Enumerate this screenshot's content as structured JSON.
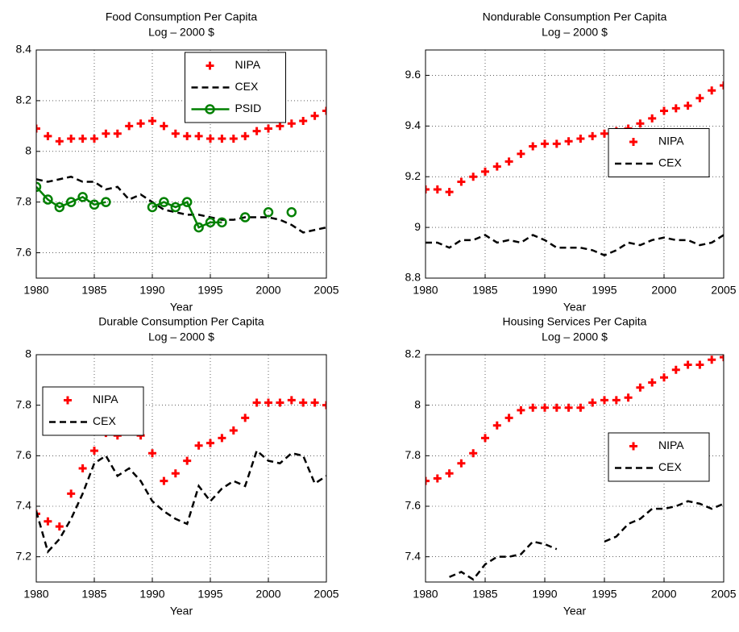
{
  "chart_data": [
    {
      "type": "line",
      "title": "Food Consumption Per Capita",
      "subtitle": "Log – 2000 $",
      "xlabel": "Year",
      "x": [
        1980,
        1981,
        1982,
        1983,
        1984,
        1985,
        1986,
        1987,
        1988,
        1989,
        1990,
        1991,
        1992,
        1993,
        1994,
        1995,
        1996,
        1997,
        1998,
        1999,
        2000,
        2001,
        2002,
        2003,
        2004,
        2005
      ],
      "xlim": [
        1980,
        2005
      ],
      "xticks": [
        1980,
        1985,
        1990,
        1995,
        2000,
        2005
      ],
      "ylim": [
        7.5,
        8.4
      ],
      "yticks": [
        7.6,
        7.8,
        8,
        8.2,
        8.4
      ],
      "grid": true,
      "legend": "north",
      "series": [
        {
          "name": "NIPA",
          "color": "#ff0000",
          "marker": "plus",
          "linestyle": "none",
          "values": [
            8.09,
            8.06,
            8.04,
            8.05,
            8.05,
            8.05,
            8.07,
            8.07,
            8.1,
            8.11,
            8.12,
            8.1,
            8.07,
            8.06,
            8.06,
            8.05,
            8.05,
            8.05,
            8.06,
            8.08,
            8.09,
            8.1,
            8.11,
            8.12,
            8.14,
            8.16
          ]
        },
        {
          "name": "CEX",
          "color": "#000000",
          "marker": "none",
          "linestyle": "dashed",
          "values": [
            7.89,
            7.88,
            7.89,
            7.9,
            7.88,
            7.88,
            7.85,
            7.86,
            7.81,
            7.83,
            7.8,
            7.77,
            7.76,
            7.75,
            7.75,
            7.74,
            7.73,
            7.73,
            7.74,
            7.74,
            7.74,
            7.73,
            7.71,
            7.68,
            7.69,
            7.7
          ]
        },
        {
          "name": "PSID",
          "color": "#008000",
          "marker": "circle",
          "linestyle": "solid",
          "values": [
            7.86,
            7.81,
            7.78,
            7.8,
            7.82,
            7.79,
            7.8,
            null,
            null,
            null,
            7.78,
            7.8,
            7.78,
            7.8,
            7.7,
            7.72,
            7.72,
            null,
            7.74,
            null,
            7.76,
            null,
            7.76,
            null,
            null,
            null
          ]
        }
      ]
    },
    {
      "type": "line",
      "title": "Nondurable Consumption Per Capita",
      "subtitle": "Log – 2000 $",
      "xlabel": "Year",
      "x": [
        1980,
        1981,
        1982,
        1983,
        1984,
        1985,
        1986,
        1987,
        1988,
        1989,
        1990,
        1991,
        1992,
        1993,
        1994,
        1995,
        1996,
        1997,
        1998,
        1999,
        2000,
        2001,
        2002,
        2003,
        2004,
        2005
      ],
      "xlim": [
        1980,
        2005
      ],
      "xticks": [
        1980,
        1985,
        1990,
        1995,
        2000,
        2005
      ],
      "ylim": [
        8.8,
        9.7
      ],
      "yticks": [
        8.8,
        9,
        9.2,
        9.4,
        9.6
      ],
      "grid": true,
      "legend": "east",
      "series": [
        {
          "name": "NIPA",
          "color": "#ff0000",
          "marker": "plus",
          "linestyle": "none",
          "values": [
            9.15,
            9.15,
            9.14,
            9.18,
            9.2,
            9.22,
            9.24,
            9.26,
            9.29,
            9.32,
            9.33,
            9.33,
            9.34,
            9.35,
            9.36,
            9.37,
            9.38,
            9.39,
            9.41,
            9.43,
            9.46,
            9.47,
            9.48,
            9.51,
            9.54,
            9.56
          ]
        },
        {
          "name": "CEX",
          "color": "#000000",
          "marker": "none",
          "linestyle": "dashed",
          "values": [
            8.94,
            8.94,
            8.92,
            8.95,
            8.95,
            8.97,
            8.94,
            8.95,
            8.94,
            8.97,
            8.95,
            8.92,
            8.92,
            8.92,
            8.91,
            8.89,
            8.91,
            8.94,
            8.93,
            8.95,
            8.96,
            8.95,
            8.95,
            8.93,
            8.94,
            8.97
          ]
        }
      ]
    },
    {
      "type": "line",
      "title": "Durable Consumption Per Capita",
      "subtitle": "Log – 2000 $",
      "xlabel": "Year",
      "x": [
        1980,
        1981,
        1982,
        1983,
        1984,
        1985,
        1986,
        1987,
        1988,
        1989,
        1990,
        1991,
        1992,
        1993,
        1994,
        1995,
        1996,
        1997,
        1998,
        1999,
        2000,
        2001,
        2002,
        2003,
        2004,
        2005
      ],
      "xlim": [
        1980,
        2005
      ],
      "xticks": [
        1980,
        1985,
        1990,
        1995,
        2000,
        2005
      ],
      "ylim": [
        7.1,
        8.0
      ],
      "yticks": [
        7.2,
        7.4,
        7.6,
        7.8,
        8
      ],
      "grid": true,
      "legend": "northwest",
      "series": [
        {
          "name": "NIPA",
          "color": "#ff0000",
          "marker": "plus",
          "linestyle": "none",
          "values": [
            7.37,
            7.34,
            7.32,
            7.45,
            7.55,
            7.62,
            7.69,
            7.68,
            7.7,
            7.68,
            7.61,
            7.5,
            7.53,
            7.58,
            7.64,
            7.65,
            7.67,
            7.7,
            7.75,
            7.81,
            7.81,
            7.81,
            7.82,
            7.81,
            7.81,
            7.8
          ]
        },
        {
          "name": "CEX",
          "color": "#000000",
          "marker": "none",
          "linestyle": "dashed",
          "values": [
            7.38,
            7.22,
            7.27,
            7.35,
            7.45,
            7.57,
            7.6,
            7.52,
            7.55,
            7.5,
            7.42,
            7.38,
            7.35,
            7.33,
            7.48,
            7.42,
            7.47,
            7.5,
            7.48,
            7.62,
            7.58,
            7.57,
            7.61,
            7.6,
            7.49,
            7.52
          ]
        }
      ]
    },
    {
      "type": "line",
      "title": "Housing Services Per Capita",
      "subtitle": "Log – 2000 $",
      "xlabel": "Year",
      "x": [
        1980,
        1981,
        1982,
        1983,
        1984,
        1985,
        1986,
        1987,
        1988,
        1989,
        1990,
        1991,
        1992,
        1993,
        1994,
        1995,
        1996,
        1997,
        1998,
        1999,
        2000,
        2001,
        2002,
        2003,
        2004,
        2005
      ],
      "xlim": [
        1980,
        2005
      ],
      "xticks": [
        1980,
        1985,
        1990,
        1995,
        2000,
        2005
      ],
      "ylim": [
        7.3,
        8.2
      ],
      "yticks": [
        7.4,
        7.6,
        7.8,
        8,
        8.2
      ],
      "grid": true,
      "legend": "east",
      "series": [
        {
          "name": "NIPA",
          "color": "#ff0000",
          "marker": "plus",
          "linestyle": "none",
          "values": [
            7.7,
            7.71,
            7.73,
            7.77,
            7.81,
            7.87,
            7.92,
            7.95,
            7.98,
            7.99,
            7.99,
            7.99,
            7.99,
            7.99,
            8.01,
            8.02,
            8.02,
            8.03,
            8.07,
            8.09,
            8.11,
            8.14,
            8.16,
            8.16,
            8.18,
            8.19
          ]
        },
        {
          "name": "CEX",
          "color": "#000000",
          "marker": "none",
          "linestyle": "dashed",
          "values": [
            null,
            null,
            7.32,
            7.34,
            7.31,
            7.37,
            7.4,
            7.4,
            7.41,
            7.46,
            7.45,
            7.43,
            null,
            null,
            null,
            7.46,
            7.48,
            7.53,
            7.55,
            7.59,
            7.59,
            7.6,
            7.62,
            7.61,
            7.59,
            7.61
          ]
        }
      ]
    }
  ]
}
